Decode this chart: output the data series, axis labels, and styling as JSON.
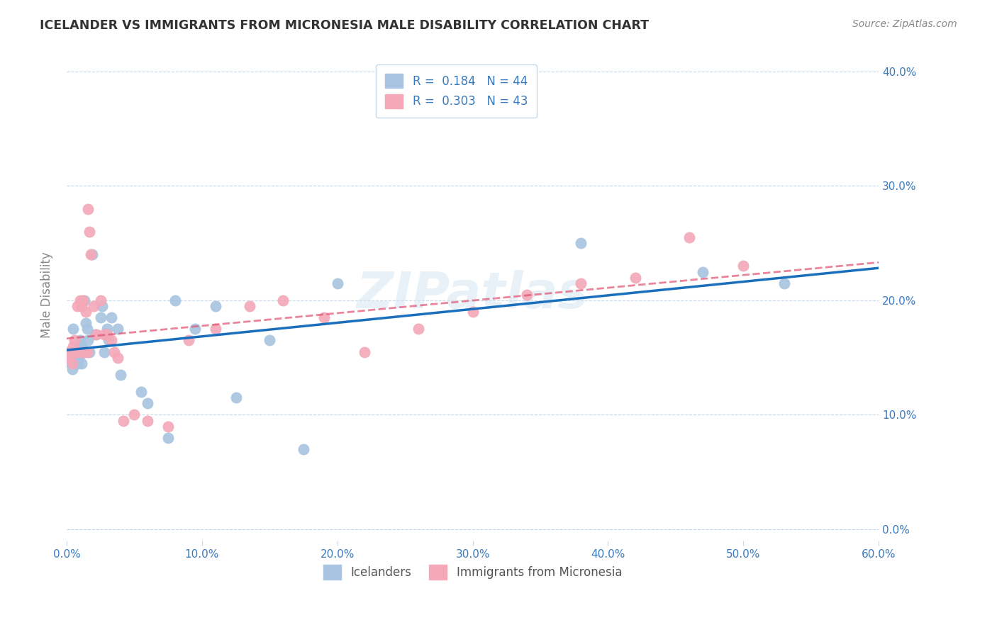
{
  "title": "ICELANDER VS IMMIGRANTS FROM MICRONESIA MALE DISABILITY CORRELATION CHART",
  "source": "Source: ZipAtlas.com",
  "xlabel_ticks": [
    "0.0%",
    "10.0%",
    "20.0%",
    "30.0%",
    "40.0%",
    "50.0%",
    "60.0%"
  ],
  "ylabel_label": "Male Disability",
  "ylabel_ticks": [
    "0.0%",
    "10.0%",
    "20.0%",
    "30.0%",
    "40.0%"
  ],
  "xlim": [
    0.0,
    0.6
  ],
  "ylim": [
    -0.01,
    0.42
  ],
  "icelanders_R": "0.184",
  "icelanders_N": "44",
  "micronesia_R": "0.303",
  "micronesia_N": "43",
  "icelander_color": "#a8c4e0",
  "micronesia_color": "#f4a8b8",
  "icelander_line_color": "#1a6fbd",
  "micronesia_line_color": "#e05070",
  "legend_label_1": "Icelanders",
  "legend_label_2": "Immigrants from Micronesia",
  "watermark": "ZIPatlas",
  "background_color": "#ffffff",
  "icelanders_x": [
    0.002,
    0.003,
    0.004,
    0.005,
    0.006,
    0.007,
    0.007,
    0.008,
    0.008,
    0.009,
    0.009,
    0.01,
    0.01,
    0.011,
    0.011,
    0.012,
    0.013,
    0.014,
    0.015,
    0.016,
    0.017,
    0.019,
    0.021,
    0.025,
    0.026,
    0.028,
    0.03,
    0.031,
    0.033,
    0.038,
    0.04,
    0.055,
    0.06,
    0.075,
    0.08,
    0.095,
    0.11,
    0.125,
    0.15,
    0.175,
    0.2,
    0.38,
    0.47,
    0.53
  ],
  "icelanders_y": [
    0.155,
    0.145,
    0.14,
    0.175,
    0.155,
    0.15,
    0.145,
    0.155,
    0.145,
    0.16,
    0.15,
    0.165,
    0.155,
    0.145,
    0.16,
    0.155,
    0.2,
    0.18,
    0.175,
    0.165,
    0.155,
    0.24,
    0.17,
    0.185,
    0.195,
    0.155,
    0.175,
    0.165,
    0.185,
    0.175,
    0.135,
    0.12,
    0.11,
    0.08,
    0.2,
    0.175,
    0.195,
    0.115,
    0.165,
    0.07,
    0.215,
    0.25,
    0.225,
    0.215
  ],
  "micronesia_x": [
    0.001,
    0.002,
    0.003,
    0.004,
    0.005,
    0.006,
    0.007,
    0.008,
    0.009,
    0.01,
    0.011,
    0.012,
    0.013,
    0.014,
    0.015,
    0.016,
    0.017,
    0.018,
    0.02,
    0.022,
    0.025,
    0.028,
    0.03,
    0.033,
    0.035,
    0.038,
    0.042,
    0.05,
    0.06,
    0.075,
    0.09,
    0.11,
    0.135,
    0.16,
    0.19,
    0.22,
    0.26,
    0.3,
    0.34,
    0.38,
    0.42,
    0.46,
    0.5
  ],
  "micronesia_y": [
    0.155,
    0.15,
    0.155,
    0.145,
    0.16,
    0.165,
    0.155,
    0.195,
    0.155,
    0.2,
    0.195,
    0.2,
    0.155,
    0.19,
    0.155,
    0.28,
    0.26,
    0.24,
    0.195,
    0.17,
    0.2,
    0.17,
    0.17,
    0.165,
    0.155,
    0.15,
    0.095,
    0.1,
    0.095,
    0.09,
    0.165,
    0.175,
    0.195,
    0.2,
    0.185,
    0.155,
    0.175,
    0.19,
    0.205,
    0.215,
    0.22,
    0.255,
    0.23
  ]
}
